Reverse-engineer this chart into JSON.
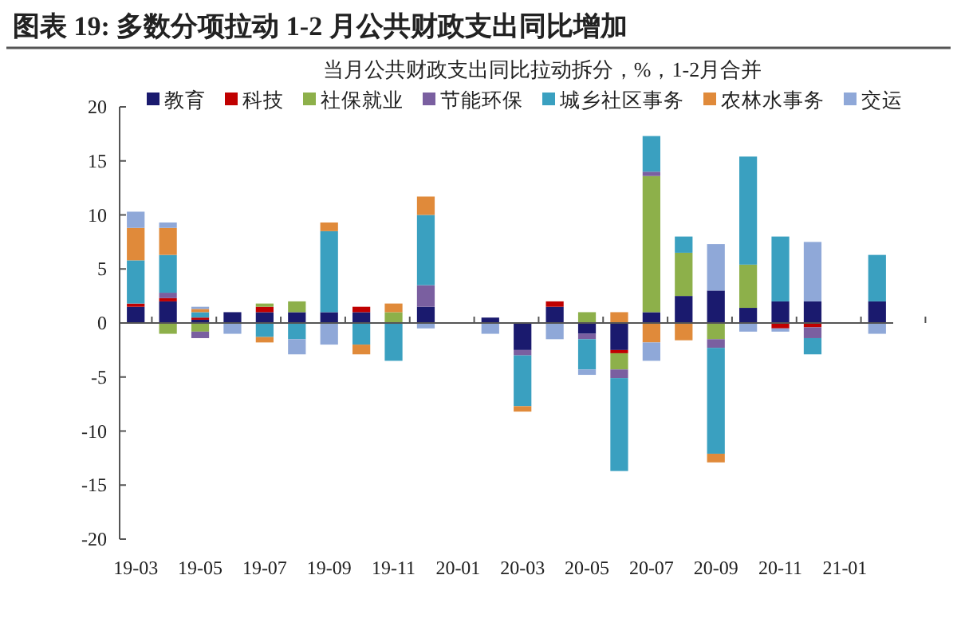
{
  "chart_data": {
    "type": "bar",
    "title": "图表 19: 多数分项拉动 1-2 月公共财政支出同比增加",
    "subtitle": "当月公共财政支出同比拉动拆分，%，1-2月合并",
    "categories": [
      "19-03",
      null,
      "19-05",
      null,
      "19-07",
      null,
      "19-09",
      null,
      "19-11",
      null,
      "20-01",
      null,
      "20-03",
      null,
      "20-05",
      null,
      "20-07",
      null,
      "20-09",
      null,
      "20-11",
      null,
      "21-01",
      null
    ],
    "stacked": true,
    "legend": "top",
    "ylim": [
      -20,
      20
    ],
    "yticks": [
      -20,
      -15,
      -10,
      -5,
      0,
      5,
      10,
      15,
      20
    ],
    "series": [
      {
        "name": "教育",
        "color": "#1a1a6e",
        "values": [
          1.5,
          2,
          0.3,
          1,
          1,
          1,
          1,
          1,
          0,
          1.5,
          null,
          0.5,
          -2.5,
          1.5,
          -1,
          -2.5,
          1,
          2.5,
          3,
          1.4,
          2,
          2,
          null,
          2
        ]
      },
      {
        "name": "科技",
        "color": "#c00000",
        "values": [
          0.3,
          0.3,
          0.2,
          0,
          0.5,
          0,
          0,
          0.5,
          0,
          0,
          null,
          0,
          0,
          0.5,
          0,
          -0.3,
          0,
          0,
          0,
          0,
          -0.5,
          -0.4,
          null,
          0
        ]
      },
      {
        "name": "社保就业",
        "color": "#8db04a",
        "values": [
          0,
          -1,
          -0.8,
          0,
          0.3,
          1,
          0,
          0,
          1,
          0,
          null,
          0,
          0,
          0,
          1,
          -1.5,
          12.6,
          4,
          -1.5,
          4,
          0,
          0,
          null,
          0
        ]
      },
      {
        "name": "节能环保",
        "color": "#7a5fa0",
        "values": [
          0,
          0.5,
          -0.6,
          0,
          0,
          0,
          0,
          0,
          0,
          2,
          null,
          0,
          -0.5,
          0,
          -0.5,
          -0.8,
          0.4,
          0,
          -0.8,
          0,
          0,
          -1,
          null,
          0
        ]
      },
      {
        "name": "城乡社区事务",
        "color": "#3aa0c0",
        "values": [
          4,
          3.5,
          0.5,
          0,
          -1.3,
          -1.5,
          7.5,
          -2,
          -3.5,
          6.5,
          null,
          0,
          -4.7,
          0,
          -2.8,
          -8.6,
          3.3,
          1.5,
          -9.8,
          10,
          6,
          -1.5,
          null,
          4.3
        ]
      },
      {
        "name": "农林水事务",
        "color": "#e08a3a",
        "values": [
          3,
          2.5,
          0.3,
          0,
          -0.5,
          0,
          0.8,
          -0.9,
          0.8,
          1.7,
          null,
          0,
          -0.5,
          0,
          0,
          1,
          -1.8,
          -1.6,
          -0.8,
          0,
          0,
          0,
          null,
          0
        ]
      },
      {
        "name": "交运",
        "color": "#8fa8d8",
        "values": [
          1.5,
          0.5,
          0.2,
          -1,
          0,
          -1.4,
          -2,
          0,
          0,
          -0.5,
          null,
          -1,
          0,
          -1.5,
          -0.5,
          0,
          -1.7,
          0,
          4.3,
          -0.8,
          -0.3,
          5.5,
          null,
          -1
        ]
      }
    ]
  }
}
